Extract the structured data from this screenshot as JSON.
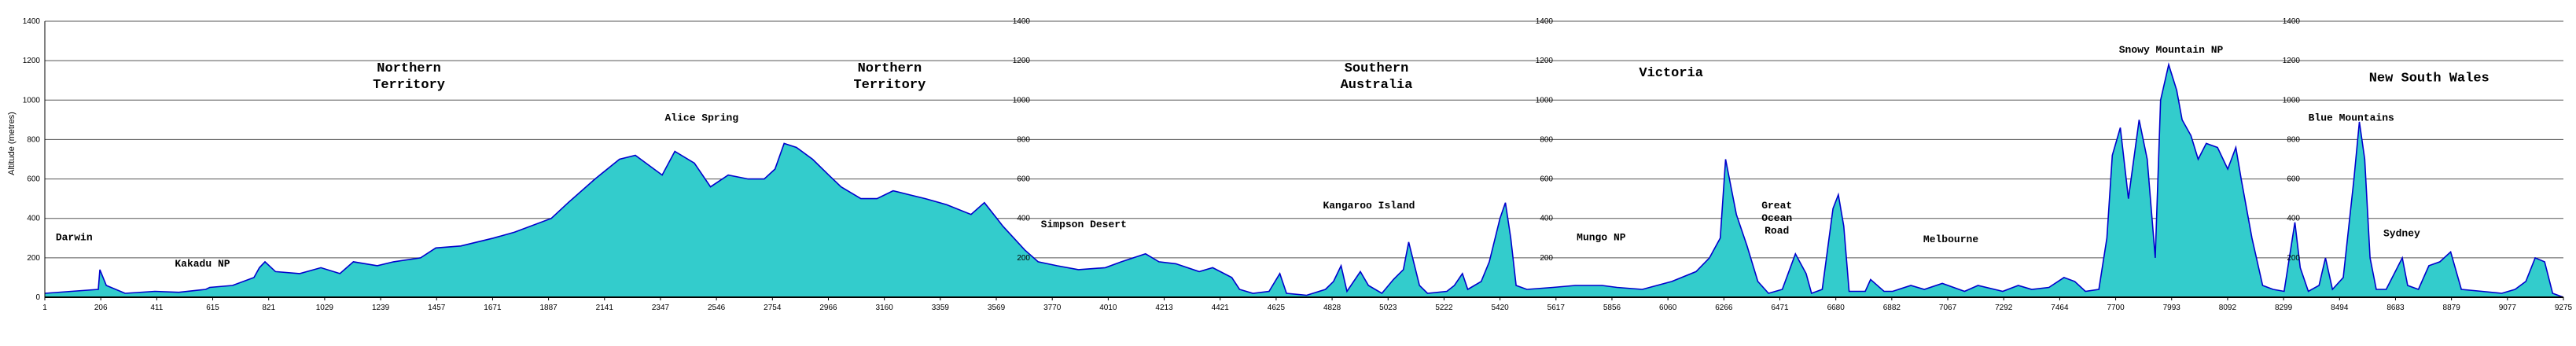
{
  "chart_data": {
    "type": "area",
    "title": "",
    "xlabel": "",
    "ylabel": "Altitude (metres)",
    "ylim": [
      0,
      1400
    ],
    "y_ticks": [
      0,
      200,
      400,
      600,
      800,
      1000,
      1200,
      1400
    ],
    "x_ticks": [
      "1",
      "206",
      "411",
      "615",
      "821",
      "1029",
      "1239",
      "1457",
      "1671",
      "1887",
      "2141",
      "2347",
      "2546",
      "2754",
      "2966",
      "3160",
      "3359",
      "3569",
      "3770",
      "4010",
      "4213",
      "4421",
      "4625",
      "4828",
      "5023",
      "5222",
      "5420",
      "5617",
      "5856",
      "6060",
      "6266",
      "6471",
      "6680",
      "6882",
      "7067",
      "7292",
      "7464",
      "7700",
      "7993",
      "8092",
      "8299",
      "8494",
      "8683",
      "8879",
      "9077",
      "9275"
    ],
    "x_range": [
      1,
      9380
    ],
    "fill_color": "#33CCCC",
    "line_color": "#0000CC",
    "repeated_axis_labels": [
      "200",
      "400",
      "600",
      "800",
      "1000",
      "1200",
      "1400"
    ],
    "profile": [
      [
        1,
        20
      ],
      [
        100,
        30
      ],
      [
        200,
        40
      ],
      [
        206,
        140
      ],
      [
        230,
        60
      ],
      [
        300,
        20
      ],
      [
        411,
        30
      ],
      [
        500,
        25
      ],
      [
        600,
        40
      ],
      [
        615,
        50
      ],
      [
        700,
        60
      ],
      [
        780,
        100
      ],
      [
        800,
        150
      ],
      [
        821,
        180
      ],
      [
        860,
        130
      ],
      [
        950,
        120
      ],
      [
        1029,
        150
      ],
      [
        1100,
        120
      ],
      [
        1150,
        180
      ],
      [
        1239,
        160
      ],
      [
        1300,
        180
      ],
      [
        1400,
        200
      ],
      [
        1457,
        250
      ],
      [
        1550,
        260
      ],
      [
        1671,
        300
      ],
      [
        1750,
        330
      ],
      [
        1887,
        400
      ],
      [
        1950,
        480
      ],
      [
        2050,
        600
      ],
      [
        2141,
        700
      ],
      [
        2200,
        720
      ],
      [
        2300,
        620
      ],
      [
        2347,
        740
      ],
      [
        2420,
        680
      ],
      [
        2480,
        560
      ],
      [
        2546,
        620
      ],
      [
        2620,
        600
      ],
      [
        2680,
        600
      ],
      [
        2720,
        650
      ],
      [
        2754,
        780
      ],
      [
        2800,
        760
      ],
      [
        2860,
        700
      ],
      [
        2920,
        620
      ],
      [
        2966,
        560
      ],
      [
        3040,
        500
      ],
      [
        3100,
        500
      ],
      [
        3160,
        540
      ],
      [
        3220,
        520
      ],
      [
        3280,
        500
      ],
      [
        3359,
        470
      ],
      [
        3450,
        420
      ],
      [
        3500,
        480
      ],
      [
        3569,
        360
      ],
      [
        3650,
        240
      ],
      [
        3700,
        180
      ],
      [
        3770,
        160
      ],
      [
        3850,
        140
      ],
      [
        3950,
        150
      ],
      [
        4010,
        180
      ],
      [
        4100,
        220
      ],
      [
        4150,
        180
      ],
      [
        4213,
        170
      ],
      [
        4300,
        130
      ],
      [
        4350,
        150
      ],
      [
        4421,
        100
      ],
      [
        4450,
        40
      ],
      [
        4500,
        20
      ],
      [
        4560,
        30
      ],
      [
        4600,
        120
      ],
      [
        4625,
        20
      ],
      [
        4700,
        10
      ],
      [
        4770,
        40
      ],
      [
        4800,
        80
      ],
      [
        4828,
        160
      ],
      [
        4850,
        30
      ],
      [
        4900,
        130
      ],
      [
        4930,
        60
      ],
      [
        4980,
        20
      ],
      [
        5023,
        90
      ],
      [
        5060,
        140
      ],
      [
        5080,
        280
      ],
      [
        5120,
        60
      ],
      [
        5150,
        20
      ],
      [
        5222,
        30
      ],
      [
        5250,
        60
      ],
      [
        5280,
        120
      ],
      [
        5300,
        40
      ],
      [
        5350,
        80
      ],
      [
        5380,
        180
      ],
      [
        5420,
        400
      ],
      [
        5440,
        480
      ],
      [
        5460,
        300
      ],
      [
        5480,
        60
      ],
      [
        5520,
        40
      ],
      [
        5617,
        50
      ],
      [
        5700,
        60
      ],
      [
        5800,
        60
      ],
      [
        5856,
        50
      ],
      [
        5950,
        40
      ],
      [
        6060,
        80
      ],
      [
        6150,
        130
      ],
      [
        6200,
        200
      ],
      [
        6240,
        300
      ],
      [
        6260,
        700
      ],
      [
        6300,
        420
      ],
      [
        6340,
        260
      ],
      [
        6380,
        80
      ],
      [
        6420,
        20
      ],
      [
        6471,
        40
      ],
      [
        6520,
        220
      ],
      [
        6560,
        120
      ],
      [
        6580,
        20
      ],
      [
        6620,
        40
      ],
      [
        6660,
        450
      ],
      [
        6680,
        520
      ],
      [
        6700,
        360
      ],
      [
        6720,
        30
      ],
      [
        6780,
        30
      ],
      [
        6800,
        90
      ],
      [
        6850,
        30
      ],
      [
        6882,
        30
      ],
      [
        6950,
        60
      ],
      [
        7000,
        40
      ],
      [
        7067,
        70
      ],
      [
        7150,
        30
      ],
      [
        7200,
        60
      ],
      [
        7292,
        30
      ],
      [
        7350,
        60
      ],
      [
        7400,
        40
      ],
      [
        7464,
        50
      ],
      [
        7520,
        100
      ],
      [
        7560,
        80
      ],
      [
        7600,
        30
      ],
      [
        7650,
        40
      ],
      [
        7680,
        300
      ],
      [
        7700,
        720
      ],
      [
        7730,
        860
      ],
      [
        7760,
        500
      ],
      [
        7800,
        900
      ],
      [
        7830,
        700
      ],
      [
        7860,
        200
      ],
      [
        7880,
        1000
      ],
      [
        7910,
        1180
      ],
      [
        7940,
        1050
      ],
      [
        7960,
        900
      ],
      [
        7993,
        820
      ],
      [
        8020,
        700
      ],
      [
        8050,
        780
      ],
      [
        8092,
        760
      ],
      [
        8130,
        650
      ],
      [
        8160,
        760
      ],
      [
        8180,
        600
      ],
      [
        8220,
        300
      ],
      [
        8260,
        60
      ],
      [
        8299,
        40
      ],
      [
        8340,
        30
      ],
      [
        8380,
        380
      ],
      [
        8400,
        150
      ],
      [
        8430,
        30
      ],
      [
        8470,
        60
      ],
      [
        8494,
        200
      ],
      [
        8520,
        40
      ],
      [
        8560,
        100
      ],
      [
        8600,
        600
      ],
      [
        8620,
        890
      ],
      [
        8640,
        700
      ],
      [
        8660,
        200
      ],
      [
        8683,
        40
      ],
      [
        8720,
        40
      ],
      [
        8780,
        200
      ],
      [
        8800,
        60
      ],
      [
        8840,
        40
      ],
      [
        8879,
        160
      ],
      [
        8920,
        180
      ],
      [
        8960,
        230
      ],
      [
        9000,
        40
      ],
      [
        9077,
        30
      ],
      [
        9150,
        20
      ],
      [
        9200,
        40
      ],
      [
        9240,
        80
      ],
      [
        9275,
        200
      ],
      [
        9310,
        180
      ],
      [
        9340,
        20
      ],
      [
        9380,
        0
      ]
    ],
    "regions": [
      {
        "lines": [
          "Northern",
          "Territory"
        ],
        "x": 1357,
        "y": 1145
      },
      {
        "lines": [
          "Northern",
          "Territory"
        ],
        "x": 3147,
        "y": 1145
      },
      {
        "lines": [
          "Southern",
          "Australia"
        ],
        "x": 4960,
        "y": 1145
      },
      {
        "lines": [
          "Victoria"
        ],
        "x": 6057,
        "y": 1120
      },
      {
        "lines": [
          "New South Wales"
        ],
        "x": 8880,
        "y": 1095
      }
    ],
    "places": [
      {
        "lines": [
          "Darwin"
        ],
        "x": 110,
        "y": 290
      },
      {
        "lines": [
          "Kakadu NP"
        ],
        "x": 588,
        "y": 155
      },
      {
        "lines": [
          "Alice Spring"
        ],
        "x": 2447,
        "y": 895
      },
      {
        "lines": [
          "Simpson Desert"
        ],
        "x": 3870,
        "y": 355
      },
      {
        "lines": [
          "Kangaroo Island"
        ],
        "x": 4932,
        "y": 450
      },
      {
        "lines": [
          "Mungo NP"
        ],
        "x": 5797,
        "y": 290
      },
      {
        "lines": [
          "Great",
          "Ocean",
          "Road"
        ],
        "x": 6451,
        "y": 450
      },
      {
        "lines": [
          "Melbourne"
        ],
        "x": 7099,
        "y": 280
      },
      {
        "lines": [
          "Snowy Mountain NP"
        ],
        "x": 7919,
        "y": 1240
      },
      {
        "lines": [
          "Blue Mountains"
        ],
        "x": 8590,
        "y": 895
      },
      {
        "lines": [
          "Sydney"
        ],
        "x": 8778,
        "y": 310
      }
    ]
  }
}
